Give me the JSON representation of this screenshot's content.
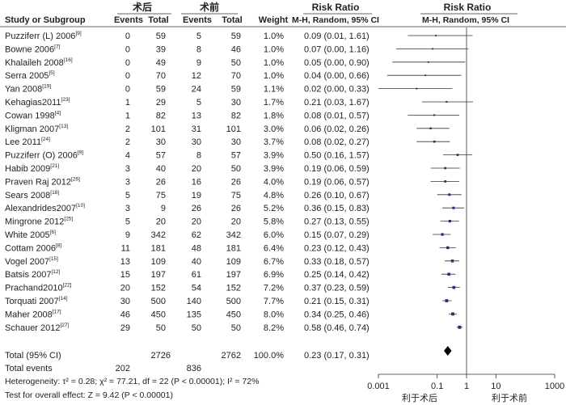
{
  "chart_data": {
    "type": "forest",
    "headers": {
      "study": "Study or Subgroup",
      "group_after": "术后",
      "group_before": "术前",
      "events": "Events",
      "total": "Total",
      "weight": "Weight",
      "rr_title": "Risk Ratio",
      "rr_method": "M-H, Random, 95% CI"
    },
    "studies": [
      {
        "name": "Puzziferr (L) 2006",
        "ref": "[9]",
        "e1": "0",
        "t1": "59",
        "e2": "5",
        "t2": "59",
        "weight": "1.0%",
        "ci_text": "0.09 (0.01, 1.61)",
        "rr": 0.09,
        "lo": 0.01,
        "hi": 1.61
      },
      {
        "name": "Bowne 2006",
        "ref": "[7]",
        "e1": "0",
        "t1": "39",
        "e2": "8",
        "t2": "46",
        "weight": "1.0%",
        "ci_text": "0.07 (0.00, 1.16)",
        "rr": 0.07,
        "lo": 0.004,
        "hi": 1.16
      },
      {
        "name": "Khalaileh 2008",
        "ref": "[16]",
        "e1": "0",
        "t1": "49",
        "e2": "9",
        "t2": "50",
        "weight": "1.0%",
        "ci_text": "0.05 (0.00, 0.90)",
        "rr": 0.05,
        "lo": 0.003,
        "hi": 0.9
      },
      {
        "name": "Serra 2005",
        "ref": "[5]",
        "e1": "0",
        "t1": "70",
        "e2": "12",
        "t2": "70",
        "weight": "1.0%",
        "ci_text": "0.04 (0.00, 0.66)",
        "rr": 0.04,
        "lo": 0.002,
        "hi": 0.66
      },
      {
        "name": "Yan 2008",
        "ref": "[19]",
        "e1": "0",
        "t1": "59",
        "e2": "24",
        "t2": "59",
        "weight": "1.1%",
        "ci_text": "0.02 (0.00, 0.33)",
        "rr": 0.02,
        "lo": 0.001,
        "hi": 0.33
      },
      {
        "name": "Kehagias2011",
        "ref": "[23]",
        "e1": "1",
        "t1": "29",
        "e2": "5",
        "t2": "30",
        "weight": "1.7%",
        "ci_text": "0.21 (0.03, 1.67)",
        "rr": 0.21,
        "lo": 0.03,
        "hi": 1.67
      },
      {
        "name": "Cowan 1998",
        "ref": "[4]",
        "e1": "1",
        "t1": "82",
        "e2": "13",
        "t2": "82",
        "weight": "1.8%",
        "ci_text": "0.08 (0.01, 0.57)",
        "rr": 0.08,
        "lo": 0.01,
        "hi": 0.57
      },
      {
        "name": "Kligman 2007",
        "ref": "[13]",
        "e1": "2",
        "t1": "101",
        "e2": "31",
        "t2": "101",
        "weight": "3.0%",
        "ci_text": "0.06 (0.02, 0.26)",
        "rr": 0.06,
        "lo": 0.02,
        "hi": 0.26
      },
      {
        "name": "Lee 2011",
        "ref": "[24]",
        "e1": "2",
        "t1": "30",
        "e2": "30",
        "t2": "30",
        "weight": "3.7%",
        "ci_text": "0.08 (0.02, 0.27)",
        "rr": 0.08,
        "lo": 0.02,
        "hi": 0.27
      },
      {
        "name": "Puzziferr (O) 2006",
        "ref": "[9]",
        "e1": "4",
        "t1": "57",
        "e2": "8",
        "t2": "57",
        "weight": "3.9%",
        "ci_text": "0.50 (0.16, 1.57)",
        "rr": 0.5,
        "lo": 0.16,
        "hi": 1.57
      },
      {
        "name": "Habib 2009",
        "ref": "[21]",
        "e1": "3",
        "t1": "40",
        "e2": "20",
        "t2": "50",
        "weight": "3.9%",
        "ci_text": "0.19 (0.06, 0.59)",
        "rr": 0.19,
        "lo": 0.06,
        "hi": 0.59
      },
      {
        "name": "Praven Raj 2012",
        "ref": "[26]",
        "e1": "3",
        "t1": "26",
        "e2": "16",
        "t2": "26",
        "weight": "4.0%",
        "ci_text": "0.19 (0.06, 0.57)",
        "rr": 0.19,
        "lo": 0.06,
        "hi": 0.57
      },
      {
        "name": "Sears 2008",
        "ref": "[18]",
        "e1": "5",
        "t1": "75",
        "e2": "19",
        "t2": "75",
        "weight": "4.8%",
        "ci_text": "0.26 (0.10, 0.67)",
        "rr": 0.26,
        "lo": 0.1,
        "hi": 0.67
      },
      {
        "name": "Alexandrides2007",
        "ref": "[10]",
        "e1": "3",
        "t1": "9",
        "e2": "26",
        "t2": "26",
        "weight": "5.2%",
        "ci_text": "0.36 (0.15, 0.83)",
        "rr": 0.36,
        "lo": 0.15,
        "hi": 0.83
      },
      {
        "name": "Mingrone 2012",
        "ref": "[25]",
        "e1": "5",
        "t1": "20",
        "e2": "20",
        "t2": "20",
        "weight": "5.8%",
        "ci_text": "0.27 (0.13, 0.55)",
        "rr": 0.27,
        "lo": 0.13,
        "hi": 0.55
      },
      {
        "name": "White 2005",
        "ref": "[6]",
        "e1": "9",
        "t1": "342",
        "e2": "62",
        "t2": "342",
        "weight": "6.0%",
        "ci_text": "0.15 (0.07, 0.29)",
        "rr": 0.15,
        "lo": 0.07,
        "hi": 0.29
      },
      {
        "name": "Cottam 2006",
        "ref": "[8]",
        "e1": "11",
        "t1": "181",
        "e2": "48",
        "t2": "181",
        "weight": "6.4%",
        "ci_text": "0.23 (0.12, 0.43)",
        "rr": 0.23,
        "lo": 0.12,
        "hi": 0.43
      },
      {
        "name": "Vogel 2007",
        "ref": "[15]",
        "e1": "13",
        "t1": "109",
        "e2": "40",
        "t2": "109",
        "weight": "6.7%",
        "ci_text": "0.33 (0.18, 0.57)",
        "rr": 0.33,
        "lo": 0.18,
        "hi": 0.57
      },
      {
        "name": "Batsis 2007",
        "ref": "[12]",
        "e1": "15",
        "t1": "197",
        "e2": "61",
        "t2": "197",
        "weight": "6.9%",
        "ci_text": "0.25 (0.14, 0.42)",
        "rr": 0.25,
        "lo": 0.14,
        "hi": 0.42
      },
      {
        "name": "Prachand2010",
        "ref": "[22]",
        "e1": "20",
        "t1": "152",
        "e2": "54",
        "t2": "152",
        "weight": "7.2%",
        "ci_text": "0.37 (0.23, 0.59)",
        "rr": 0.37,
        "lo": 0.23,
        "hi": 0.59
      },
      {
        "name": "Torquati 2007",
        "ref": "[14]",
        "e1": "30",
        "t1": "500",
        "e2": "140",
        "t2": "500",
        "weight": "7.7%",
        "ci_text": "0.21 (0.15, 0.31)",
        "rr": 0.21,
        "lo": 0.15,
        "hi": 0.31
      },
      {
        "name": "Maher 2008",
        "ref": "[17]",
        "e1": "46",
        "t1": "450",
        "e2": "135",
        "t2": "450",
        "weight": "8.0%",
        "ci_text": "0.34 (0.25, 0.46)",
        "rr": 0.34,
        "lo": 0.25,
        "hi": 0.46
      },
      {
        "name": "Schauer 2012",
        "ref": "[27]",
        "e1": "29",
        "t1": "50",
        "e2": "50",
        "t2": "50",
        "weight": "8.2%",
        "ci_text": "0.58 (0.46, 0.74)",
        "rr": 0.58,
        "lo": 0.46,
        "hi": 0.74
      }
    ],
    "total": {
      "label": "Total (95% CI)",
      "t1": "2726",
      "t2": "2762",
      "weight": "100.0%",
      "ci_text": "0.23 (0.17, 0.31)",
      "rr": 0.23,
      "lo": 0.17,
      "hi": 0.31
    },
    "total_events": {
      "label": "Total events",
      "e1": "202",
      "e2": "836"
    },
    "heterogeneity": "Heterogeneity: τ² = 0.28; χ² = 77.21, df = 22 (P < 0.00001); I² = 72%",
    "overall_effect": "Test for overall effect: Z = 9.42 (P < 0.00001)",
    "axis": {
      "scale": "log",
      "range": [
        0.001,
        1000
      ],
      "ticks": [
        {
          "value": 0.001,
          "label": "0.001"
        },
        {
          "value": 0.1,
          "label": "0.1"
        },
        {
          "value": 1,
          "label": "1"
        },
        {
          "value": 10,
          "label": "10"
        },
        {
          "value": 1000,
          "label": "1000"
        }
      ],
      "favours_left": "利于术后",
      "favours_right": "利于术前"
    },
    "colors": {
      "marker": "#2b2b7a",
      "line": "#333333",
      "diamond": "#000000"
    }
  }
}
